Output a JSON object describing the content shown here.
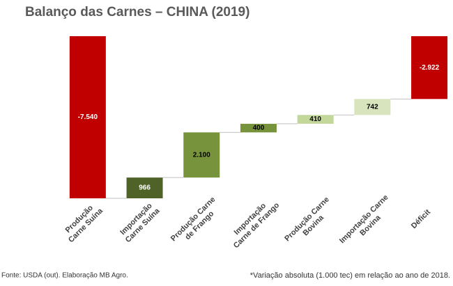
{
  "chart_data": {
    "type": "waterfall",
    "title": "Balanço das Carnes – CHINA (2019)",
    "categories": [
      [
        "Produção",
        "Carne Suína"
      ],
      [
        "Importação",
        "Carne Suína"
      ],
      [
        "Produção Carne",
        "de Frango"
      ],
      [
        "Importação",
        "Carne de Frango"
      ],
      [
        "Produção Carne",
        "Bovina"
      ],
      [
        "Importação Carne",
        "Bovina"
      ],
      [
        "Déficit"
      ]
    ],
    "values": [
      -7540,
      966,
      2100,
      400,
      410,
      742,
      -2922
    ],
    "value_labels": [
      "-7.540",
      "966",
      "2.100",
      "400",
      "410",
      "742",
      "-2.922"
    ],
    "measure": [
      "relative",
      "relative",
      "relative",
      "relative",
      "relative",
      "relative",
      "total"
    ],
    "colors": [
      "#c00000",
      "#4f6228",
      "#77933c",
      "#77933c",
      "#c4d79b",
      "#d7e4bd",
      "#c00000"
    ],
    "label_colors": [
      "#ffffff",
      "#ffffff",
      "#000000",
      "#000000",
      "#000000",
      "#000000",
      "#ffffff"
    ],
    "source": "Fonte: USDA (out). Elaboração MB Agro.",
    "note": "*Variação absoluta (1.000 tec) em relação ao ano de 2018."
  }
}
